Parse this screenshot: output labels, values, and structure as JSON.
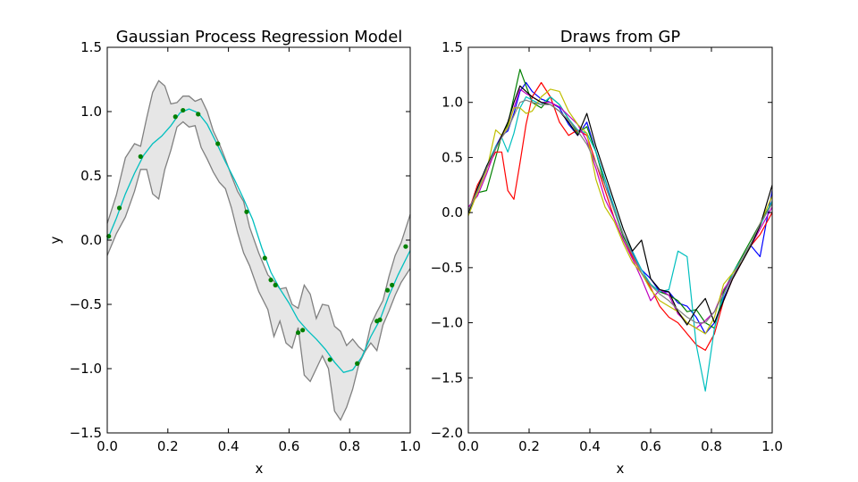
{
  "chart_data": [
    {
      "type": "line",
      "title": "Gaussian Process Regression Model",
      "xlabel": "x",
      "ylabel": "y",
      "xlim": [
        0.0,
        1.0
      ],
      "ylim": [
        -1.5,
        1.5
      ],
      "xticks": [
        "0.0",
        "0.2",
        "0.4",
        "0.6",
        "0.8",
        "1.0"
      ],
      "yticks": [
        "−1.5",
        "−1.0",
        "−0.5",
        "0.0",
        "0.5",
        "1.0",
        "1.5"
      ],
      "grid": false,
      "colors": {
        "mean": "#00bfbf",
        "band_fill": "#e6e6e6",
        "band_edge": "#808080",
        "points": "#008000"
      },
      "mean": {
        "x": [
          0.0,
          0.03,
          0.06,
          0.09,
          0.12,
          0.15,
          0.18,
          0.21,
          0.24,
          0.27,
          0.3,
          0.33,
          0.36,
          0.39,
          0.42,
          0.45,
          0.48,
          0.51,
          0.54,
          0.57,
          0.6,
          0.63,
          0.66,
          0.69,
          0.72,
          0.75,
          0.78,
          0.81,
          0.84,
          0.87,
          0.9,
          0.93,
          0.96,
          1.0
        ],
        "y": [
          0.0,
          0.17,
          0.36,
          0.52,
          0.66,
          0.75,
          0.81,
          0.89,
          0.99,
          1.02,
          0.99,
          0.9,
          0.76,
          0.61,
          0.47,
          0.32,
          0.16,
          -0.06,
          -0.25,
          -0.38,
          -0.49,
          -0.62,
          -0.7,
          -0.77,
          -0.85,
          -0.95,
          -1.03,
          -1.01,
          -0.91,
          -0.75,
          -0.62,
          -0.43,
          -0.27,
          -0.08
        ]
      },
      "band": {
        "x": [
          0.0,
          0.03,
          0.06,
          0.09,
          0.11,
          0.13,
          0.15,
          0.17,
          0.19,
          0.21,
          0.23,
          0.25,
          0.27,
          0.29,
          0.31,
          0.33,
          0.35,
          0.37,
          0.39,
          0.41,
          0.43,
          0.45,
          0.47,
          0.5,
          0.53,
          0.55,
          0.57,
          0.59,
          0.61,
          0.63,
          0.65,
          0.67,
          0.69,
          0.71,
          0.73,
          0.75,
          0.77,
          0.79,
          0.81,
          0.83,
          0.85,
          0.87,
          0.89,
          0.91,
          0.93,
          0.95,
          0.97,
          1.0
        ],
        "upper": [
          0.13,
          0.35,
          0.64,
          0.75,
          0.73,
          0.95,
          1.15,
          1.24,
          1.2,
          1.06,
          1.07,
          1.12,
          1.12,
          1.08,
          1.1,
          1.0,
          0.85,
          0.75,
          0.63,
          0.5,
          0.38,
          0.3,
          0.1,
          -0.1,
          -0.27,
          -0.32,
          -0.38,
          -0.37,
          -0.5,
          -0.53,
          -0.35,
          -0.42,
          -0.61,
          -0.5,
          -0.51,
          -0.67,
          -0.71,
          -0.82,
          -0.77,
          -0.83,
          -0.87,
          -0.66,
          -0.56,
          -0.47,
          -0.28,
          -0.12,
          -0.02,
          0.2
        ],
        "lower": [
          -0.12,
          0.05,
          0.18,
          0.38,
          0.55,
          0.55,
          0.36,
          0.32,
          0.55,
          0.7,
          0.88,
          0.92,
          0.88,
          0.89,
          0.72,
          0.63,
          0.53,
          0.45,
          0.4,
          0.25,
          0.06,
          -0.1,
          -0.2,
          -0.4,
          -0.54,
          -0.75,
          -0.63,
          -0.8,
          -0.84,
          -0.68,
          -1.05,
          -1.1,
          -1.0,
          -0.9,
          -1.0,
          -1.33,
          -1.4,
          -1.3,
          -1.16,
          -0.97,
          -0.87,
          -0.8,
          -0.86,
          -0.66,
          -0.55,
          -0.43,
          -0.33,
          -0.22
        ]
      },
      "points": {
        "x": [
          0.005,
          0.04,
          0.11,
          0.225,
          0.25,
          0.3,
          0.365,
          0.46,
          0.52,
          0.54,
          0.555,
          0.63,
          0.645,
          0.735,
          0.825,
          0.89,
          0.9,
          0.925,
          0.94,
          0.985
        ],
        "y": [
          0.03,
          0.25,
          0.65,
          0.96,
          1.01,
          0.98,
          0.75,
          0.22,
          -0.14,
          -0.31,
          -0.35,
          -0.72,
          -0.7,
          -0.93,
          -0.96,
          -0.63,
          -0.62,
          -0.39,
          -0.35,
          -0.05
        ]
      }
    },
    {
      "type": "line",
      "title": "Draws from GP",
      "xlabel": "x",
      "ylabel": "",
      "xlim": [
        0.0,
        1.0
      ],
      "ylim": [
        -2.0,
        1.5
      ],
      "xticks": [
        "0.0",
        "0.2",
        "0.4",
        "0.6",
        "0.8",
        "1.0"
      ],
      "yticks": [
        "−2.0",
        "−1.5",
        "−1.0",
        "−0.5",
        "0.0",
        "0.5",
        "1.0",
        "1.5"
      ],
      "grid": false,
      "x": [
        0.0,
        0.03,
        0.06,
        0.09,
        0.11,
        0.13,
        0.15,
        0.17,
        0.19,
        0.21,
        0.24,
        0.27,
        0.3,
        0.33,
        0.36,
        0.39,
        0.42,
        0.45,
        0.48,
        0.51,
        0.54,
        0.57,
        0.6,
        0.63,
        0.66,
        0.69,
        0.72,
        0.75,
        0.78,
        0.81,
        0.84,
        0.87,
        0.9,
        0.93,
        0.96,
        1.0
      ],
      "series": [
        {
          "color": "#0000ff",
          "values": [
            -0.02,
            0.2,
            0.4,
            0.6,
            0.7,
            0.74,
            0.9,
            1.1,
            1.18,
            1.1,
            1.03,
            1.0,
            0.95,
            0.8,
            0.7,
            0.82,
            0.55,
            0.3,
            0.02,
            -0.2,
            -0.36,
            -0.52,
            -0.6,
            -0.72,
            -0.72,
            -0.82,
            -0.85,
            -0.95,
            -1.1,
            -1.0,
            -0.78,
            -0.6,
            -0.45,
            -0.3,
            -0.4,
            0.2
          ]
        },
        {
          "color": "#008000",
          "values": [
            0.02,
            0.18,
            0.2,
            0.5,
            0.7,
            0.8,
            1.05,
            1.3,
            1.15,
            1.0,
            0.95,
            1.05,
            0.98,
            0.85,
            0.72,
            0.78,
            0.55,
            0.25,
            0.02,
            -0.22,
            -0.38,
            -0.55,
            -0.65,
            -0.72,
            -0.75,
            -0.8,
            -0.9,
            -0.88,
            -1.0,
            -1.05,
            -0.72,
            -0.55,
            -0.4,
            -0.25,
            -0.1,
            0.1
          ]
        },
        {
          "color": "#ff0000",
          "values": [
            0.0,
            0.25,
            0.4,
            0.55,
            0.55,
            0.2,
            0.12,
            0.45,
            0.8,
            1.05,
            1.18,
            1.05,
            0.82,
            0.7,
            0.75,
            0.7,
            0.45,
            0.2,
            -0.05,
            -0.25,
            -0.4,
            -0.55,
            -0.68,
            -0.85,
            -0.95,
            -1.0,
            -1.1,
            -1.2,
            -1.25,
            -1.1,
            -0.8,
            -0.6,
            -0.45,
            -0.3,
            -0.2,
            0.0
          ]
        },
        {
          "color": "#00bfbf",
          "values": [
            0.0,
            0.22,
            0.42,
            0.6,
            0.68,
            0.55,
            0.72,
            0.95,
            1.05,
            1.02,
            0.98,
            1.05,
            0.98,
            0.85,
            0.75,
            0.72,
            0.55,
            0.3,
            0.05,
            -0.2,
            -0.35,
            -0.52,
            -0.65,
            -0.72,
            -0.7,
            -0.35,
            -0.4,
            -1.2,
            -1.62,
            -1.05,
            -0.75,
            -0.55,
            -0.42,
            -0.28,
            -0.12,
            0.1
          ]
        },
        {
          "color": "#bf00bf",
          "values": [
            0.05,
            0.15,
            0.35,
            0.58,
            0.7,
            0.78,
            0.95,
            1.12,
            1.08,
            1.05,
            1.0,
            1.0,
            0.96,
            0.88,
            0.8,
            0.65,
            0.4,
            0.12,
            -0.05,
            -0.25,
            -0.42,
            -0.6,
            -0.8,
            -0.7,
            -0.75,
            -0.92,
            -1.0,
            -1.05,
            -0.98,
            -0.9,
            -0.7,
            -0.58,
            -0.45,
            -0.3,
            -0.15,
            0.05
          ]
        },
        {
          "color": "#bfbf00",
          "values": [
            -0.03,
            0.18,
            0.38,
            0.75,
            0.7,
            0.78,
            0.95,
            0.95,
            0.9,
            0.92,
            1.05,
            1.12,
            1.1,
            0.92,
            0.8,
            0.72,
            0.3,
            0.05,
            -0.08,
            -0.28,
            -0.45,
            -0.55,
            -0.7,
            -0.8,
            -0.85,
            -0.9,
            -1.0,
            -1.05,
            -1.1,
            -0.95,
            -0.65,
            -0.55,
            -0.45,
            -0.3,
            -0.1,
            0.15
          ]
        },
        {
          "color": "#000000",
          "values": [
            0.0,
            0.22,
            0.42,
            0.58,
            0.7,
            0.82,
            1.0,
            1.15,
            1.1,
            1.05,
            1.0,
            0.98,
            0.92,
            0.82,
            0.7,
            0.9,
            0.6,
            0.35,
            0.1,
            -0.15,
            -0.35,
            -0.25,
            -0.6,
            -0.7,
            -0.72,
            -0.9,
            -1.02,
            -0.88,
            -0.78,
            -1.0,
            -0.8,
            -0.6,
            -0.45,
            -0.3,
            -0.12,
            0.25
          ]
        },
        {
          "color": "#808080",
          "values": [
            0.02,
            0.2,
            0.4,
            0.58,
            0.68,
            0.76,
            0.88,
            1.0,
            1.02,
            1.0,
            0.98,
            0.98,
            0.92,
            0.84,
            0.74,
            0.62,
            0.45,
            0.25,
            0.02,
            -0.2,
            -0.38,
            -0.55,
            -0.66,
            -0.74,
            -0.8,
            -0.88,
            -0.95,
            -1.0,
            -1.0,
            -0.9,
            -0.74,
            -0.58,
            -0.42,
            -0.28,
            -0.1,
            0.08
          ]
        }
      ]
    }
  ]
}
